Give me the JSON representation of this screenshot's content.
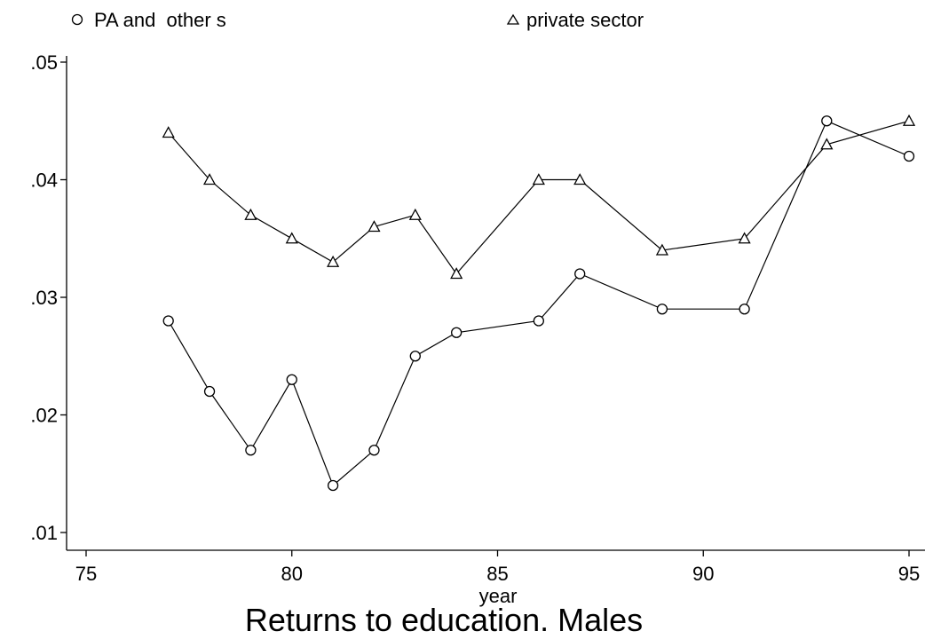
{
  "chart_data": {
    "type": "line",
    "title": "Returns to education. Males",
    "xlabel": "year",
    "ylabel": "",
    "xlim": [
      75,
      95.5
    ],
    "ylim": [
      0.01,
      0.0505
    ],
    "x_ticks": [
      75,
      80,
      85,
      90,
      95
    ],
    "x_tick_labels": [
      "75",
      "80",
      "85",
      "90",
      "95"
    ],
    "y_ticks": [
      0.01,
      0.02,
      0.03,
      0.04,
      0.05
    ],
    "y_tick_labels": [
      ".01",
      ".02",
      ".03",
      ".04",
      ".05"
    ],
    "grid": false,
    "legend_position": "top",
    "line_color": "#000000",
    "series": [
      {
        "name": "PA and  other s",
        "marker": "circle",
        "x": [
          77,
          78,
          79,
          80,
          81,
          82,
          83,
          84,
          86,
          87,
          89,
          91,
          93,
          95
        ],
        "y": [
          0.028,
          0.022,
          0.017,
          0.023,
          0.014,
          0.017,
          0.025,
          0.027,
          0.028,
          0.032,
          0.029,
          0.029,
          0.045,
          0.042
        ]
      },
      {
        "name": "private sector",
        "marker": "triangle",
        "x": [
          77,
          78,
          79,
          80,
          81,
          82,
          83,
          84,
          86,
          87,
          89,
          91,
          93,
          95
        ],
        "y": [
          0.044,
          0.04,
          0.037,
          0.035,
          0.033,
          0.036,
          0.037,
          0.032,
          0.04,
          0.04,
          0.034,
          0.035,
          0.043,
          0.045
        ]
      }
    ]
  }
}
